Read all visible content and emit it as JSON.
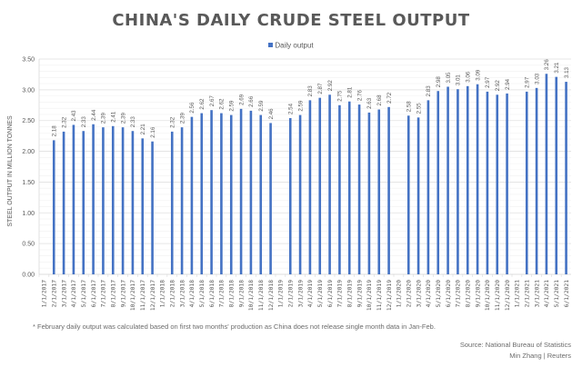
{
  "chart_data": {
    "type": "bar",
    "title": "CHINA'S DAILY CRUDE STEEL OUTPUT",
    "ylabel": "STEEL OUTPUT IN MILLION TONNES",
    "xlabel": "",
    "ylim": [
      0,
      3.5
    ],
    "yticks": [
      "0.00",
      "0.50",
      "1.00",
      "1.50",
      "2.00",
      "2.50",
      "3.00",
      "3.50"
    ],
    "grid": true,
    "legend_position": "top",
    "series": [
      {
        "name": "Daily output",
        "color": "#4472c4",
        "values": [
          null,
          2.18,
          2.32,
          2.43,
          2.33,
          2.44,
          2.39,
          2.41,
          2.39,
          2.33,
          2.21,
          2.16,
          null,
          2.32,
          2.39,
          2.56,
          2.62,
          2.67,
          2.62,
          2.59,
          2.69,
          2.66,
          2.59,
          2.46,
          null,
          2.54,
          2.59,
          2.83,
          2.87,
          2.92,
          2.75,
          2.81,
          2.76,
          2.63,
          2.68,
          2.72,
          null,
          2.58,
          2.55,
          2.83,
          2.98,
          3.05,
          3.01,
          3.06,
          3.09,
          2.97,
          2.92,
          2.94,
          null,
          2.97,
          3.03,
          3.26,
          3.21,
          3.13
        ]
      }
    ],
    "categories": [
      "1/1/2017",
      "2/1/2017",
      "3/1/2017",
      "4/1/2017",
      "5/1/2017",
      "6/1/2017",
      "7/1/2017",
      "8/1/2017",
      "9/1/2017",
      "10/1/2017",
      "11/1/2017",
      "12/1/2017",
      "1/1/2018",
      "2/1/2018",
      "3/1/2018",
      "4/1/2018",
      "5/1/2018",
      "6/1/2018",
      "7/1/2018",
      "8/1/2018",
      "9/1/2018",
      "10/1/2018",
      "11/1/2018",
      "12/1/2018",
      "1/1/2019",
      "2/1/2019",
      "3/1/2019",
      "4/1/2019",
      "5/1/2019",
      "6/1/2019",
      "7/1/2019",
      "8/1/2019",
      "9/1/2019",
      "10/1/2019",
      "11/1/2019",
      "12/1/2019",
      "1/1/2020",
      "2/1/2020",
      "3/1/2020",
      "4/1/2020",
      "5/1/2020",
      "6/1/2020",
      "7/1/2020",
      "8/1/2020",
      "9/1/2020",
      "10/1/2020",
      "11/1/2020",
      "12/1/2020",
      "1/1/2021",
      "2/1/2021",
      "3/1/2021",
      "4/1/2021",
      "5/1/2021",
      "6/1/2021"
    ]
  },
  "legend": {
    "label": "Daily output"
  },
  "footnote": "* February daily output was calculated based on first two months' production as China does not release single month data in Jan-Feb.",
  "source": {
    "line1": "Source: National Bureau of Statistics",
    "line2": "Min Zhang | Reuters"
  }
}
